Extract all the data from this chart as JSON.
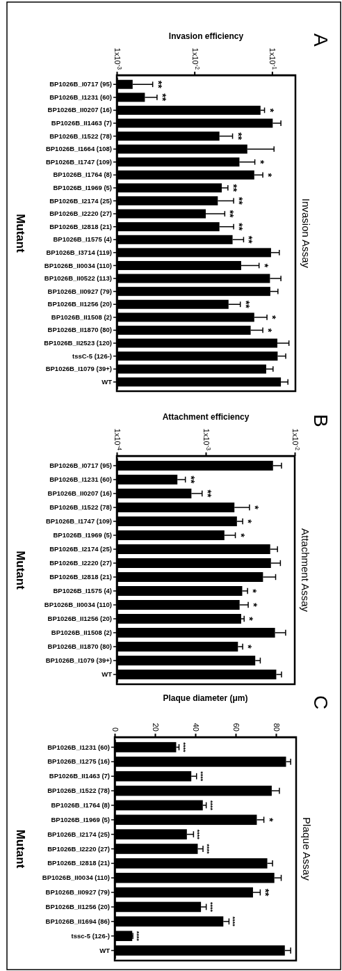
{
  "chart_data": [
    {
      "type": "bar",
      "orientation": "horizontal",
      "title": "Invasion Assay",
      "ylabel": "Mutant",
      "xlabel": "Invasion efficiency",
      "log": "x",
      "color": "#000000",
      "categories": [
        "BP1026B_I0717 (95)",
        "BP1026B_I1231 (60)",
        "BP1026B_II0207 (16)",
        "BP1026B_II1463 (7)",
        "BP1026B_I1522 (78)",
        "BP1026B_I1664 (108)",
        "BP1026B_I1747 (109)",
        "BP1026B_I1764 (8)",
        "BP1026B_I1969 (5)",
        "BP1026B_I2174 (25)",
        "BP1026B_I2220 (27)",
        "BP1026B_I2818 (21)",
        "BP1026B_I1575 (4)",
        "BP1026B_I3714 (119)",
        "BP1026B_II0034 (110)",
        "BP1026B_II0522 (113)",
        "BP1026B_II0927 (79)",
        "BP1026B_II1256 (20)",
        "BP1026B_II1508 (2)",
        "BP1026B_II1870 (80)",
        "BP1026B_II2523 (120)",
        "tssC-5 (126-)",
        "BP1026B_I1079 (39+)",
        "WT"
      ],
      "values": [
        0.0016,
        0.0023,
        0.071,
        0.102,
        0.021,
        0.048,
        0.038,
        0.059,
        0.0225,
        0.02,
        0.014,
        0.021,
        0.031,
        0.097,
        0.04,
        0.094,
        0.095,
        0.0275,
        0.059,
        0.053,
        0.117,
        0.118,
        0.084,
        0.13
      ],
      "errors": [
        [
          0.0016,
          0.0029
        ],
        [
          0.0023,
          0.0033
        ],
        [
          0.071,
          0.08
        ],
        [
          0.102,
          0.13
        ],
        [
          0.021,
          0.031
        ],
        [
          0.048,
          0.106
        ],
        [
          0.038,
          0.06
        ],
        [
          0.059,
          0.076
        ],
        [
          0.0225,
          0.027
        ],
        [
          0.02,
          0.032
        ],
        [
          0.014,
          0.0246
        ],
        [
          0.021,
          0.032
        ],
        [
          0.031,
          0.043
        ],
        [
          0.097,
          0.124
        ],
        [
          0.04,
          0.068
        ],
        [
          0.094,
          0.13
        ],
        [
          0.095,
          0.119
        ],
        [
          0.0275,
          0.039
        ],
        [
          0.059,
          0.086
        ],
        [
          0.053,
          0.076
        ],
        [
          0.117,
          0.165
        ],
        [
          0.118,
          0.15
        ],
        [
          0.084,
          0.103
        ],
        [
          0.13,
          0.16
        ]
      ],
      "xlim": [
        0.001,
        0.2
      ],
      "xticks": [
        {
          "value": 0.001,
          "label": "1x10$^{-3}$"
        },
        {
          "value": 0.01,
          "label": "1x10$^{-2}$"
        },
        {
          "value": 0.1,
          "label": "1x10$^{-1}$"
        }
      ],
      "annotations": [
        "A",
        {
          "text": "**",
          "y": "BP1026B_I0717 (95)",
          "x": 0.0029
        },
        {
          "text": "**",
          "y": "BP1026B_I1231 (60)",
          "x": 0.0033
        },
        {
          "text": "*",
          "y": "BP1026B_II0207 (16)",
          "x": 0.08
        },
        {
          "text": "**",
          "y": "BP1026B_I1522 (78)",
          "x": 0.031
        },
        {
          "text": "*",
          "y": "BP1026B_I1747 (109)",
          "x": 0.06
        },
        {
          "text": "*",
          "y": "BP1026B_I1764 (8)",
          "x": 0.076
        },
        {
          "text": "**",
          "y": "BP1026B_I1969 (5)",
          "x": 0.027
        },
        {
          "text": "**",
          "y": "BP1026B_I2174 (25)",
          "x": 0.032
        },
        {
          "text": "**",
          "y": "BP1026B_I2220 (27)",
          "x": 0.0246
        },
        {
          "text": "**",
          "y": "BP1026B_I2818 (21)",
          "x": 0.032
        },
        {
          "text": "**",
          "y": "BP1026B_I1575 (4)",
          "x": 0.043
        },
        {
          "text": "*",
          "y": "BP1026B_II0034 (110)",
          "x": 0.068
        },
        {
          "text": "**",
          "y": "BP1026B_II1256 (20)",
          "x": 0.039
        },
        {
          "text": "*",
          "y": "BP1026B_II1508 (2)",
          "x": 0.086
        },
        {
          "text": "*",
          "y": "BP1026B_II1870 (80)",
          "x": 0.076
        }
      ]
    },
    {
      "type": "bar",
      "orientation": "horizontal",
      "title": "Attachment Assay",
      "ylabel": "Mutant",
      "xlabel": "Attachment efficiency",
      "log": "x",
      "color": "#000000",
      "categories": [
        "BP1026B_I0717 (95)",
        "BP1026B_I1231 (60)",
        "BP1026B_II0207 (16)",
        "BP1026B_I1522 (78)",
        "BP1026B_I1747 (109)",
        "BP1026B_I1969 (5)",
        "BP1026B_I2174 (25)",
        "BP1026B_I2220 (27)",
        "BP1026B_I2818 (21)",
        "BP1026B_I1575 (4)",
        "BP1026B_II0034 (110)",
        "BP1026B_II1256 (20)",
        "BP1026B_II1508 (2)",
        "BP1026B_II1870 (80)",
        "BP1026B_I1079 (39+)",
        "WT"
      ],
      "values": [
        0.0057,
        0.00048,
        0.00069,
        0.0021,
        0.00224,
        0.00162,
        0.0053,
        0.0054,
        0.0044,
        0.00257,
        0.0024,
        0.0025,
        0.006,
        0.0023,
        0.0036,
        0.0062
      ],
      "errors": [
        [
          0.0057,
          0.0071
        ],
        [
          0.00048,
          0.00059
        ],
        [
          0.00069,
          0.00091
        ],
        [
          0.0021,
          0.0031
        ],
        [
          0.00224,
          0.0026
        ],
        [
          0.00162,
          0.00215
        ],
        [
          0.0053,
          0.0064
        ],
        [
          0.0054,
          0.0069
        ],
        [
          0.0044,
          0.0061
        ],
        [
          0.00257,
          0.00295
        ],
        [
          0.0024,
          0.003
        ],
        [
          0.0025,
          0.0027
        ],
        [
          0.006,
          0.0079
        ],
        [
          0.0023,
          0.0026
        ],
        [
          0.0036,
          0.0041
        ],
        [
          0.0062,
          0.0071
        ]
      ],
      "xlim": [
        0.0001,
        0.01
      ],
      "xticks": [
        {
          "value": 0.0001,
          "label": "1x10$^{-4}$"
        },
        {
          "value": 0.001,
          "label": "1x10$^{-3}$"
        },
        {
          "value": 0.01,
          "label": "1x10$^{-2}$"
        }
      ],
      "annotations": [
        "B",
        {
          "text": "**",
          "y": "BP1026B_I1231 (60)",
          "x": 0.00059
        },
        {
          "text": "**",
          "y": "BP1026B_II0207 (16)",
          "x": 0.00091
        },
        {
          "text": "*",
          "y": "BP1026B_I1522 (78)",
          "x": 0.0031
        },
        {
          "text": "*",
          "y": "BP1026B_I1747 (109)",
          "x": 0.0026
        },
        {
          "text": "*",
          "y": "BP1026B_I1969 (5)",
          "x": 0.00215
        },
        {
          "text": "*",
          "y": "BP1026B_I1575 (4)",
          "x": 0.00295
        },
        {
          "text": "*",
          "y": "BP1026B_II0034 (110)",
          "x": 0.003
        },
        {
          "text": "*",
          "y": "BP1026B_II1256 (20)",
          "x": 0.0027
        },
        {
          "text": "*",
          "y": "BP1026B_II1870 (80)",
          "x": 0.0026
        }
      ]
    },
    {
      "type": "bar",
      "orientation": "horizontal",
      "title": "Plaque Assay",
      "ylabel": "Mutant",
      "xlabel": "Plaque diameter (μm)",
      "color": "#000000",
      "categories": [
        "BP1026B_I1231 (60)",
        "BP1026B_I1275 (16)",
        "BP1026B_II1463 (7)",
        "BP1026B_I1522 (78)",
        "BP1026B_I1764 (8)",
        "BP1026B_I1969 (5)",
        "BP1026B_I2174 (25)",
        "BP1026B_I2220 (27)",
        "BP1026B_I2818 (21)",
        "BP1026B_II0034 (110)",
        "BP1026B_II0927 (79)",
        "BP1026B_II1256 (20)",
        "BP1026B_II1694 (86)",
        "tssc-5 (126-)",
        "WT"
      ],
      "values": [
        30.5,
        85,
        38,
        77.9,
        43.7,
        70.5,
        35.8,
        41.2,
        75.7,
        79.2,
        68.6,
        42.8,
        53.9,
        8.7,
        84.4
      ],
      "errors": [
        [
          30.5,
          31.9
        ],
        [
          85,
          87.3
        ],
        [
          38,
          40.6
        ],
        [
          77.9,
          81.7
        ],
        [
          43.7,
          45.4
        ],
        [
          70.5,
          74
        ],
        [
          35.8,
          39.1
        ],
        [
          41.2,
          43.8
        ],
        [
          75.7,
          78.3
        ],
        [
          79.2,
          82.6
        ],
        [
          68.6,
          72.2
        ],
        [
          42.8,
          45.4
        ],
        [
          53.9,
          56.7
        ],
        [
          8.7,
          9
        ],
        [
          84.4,
          87.3
        ]
      ],
      "xlim": [
        0,
        90
      ],
      "xticks": [
        0,
        20,
        40,
        60,
        80
      ],
      "annotations": [
        "C",
        {
          "text": "****",
          "y": "BP1026B_I1231 (60)",
          "x": 31.9
        },
        {
          "text": "****",
          "y": "BP1026B_II1463 (7)",
          "x": 40.6
        },
        {
          "text": "****",
          "y": "BP1026B_I1764 (8)",
          "x": 45.4
        },
        {
          "text": "*",
          "y": "BP1026B_I1969 (5)",
          "x": 74
        },
        {
          "text": "****",
          "y": "BP1026B_I2174 (25)",
          "x": 39.1
        },
        {
          "text": "****",
          "y": "BP1026B_I2220 (27)",
          "x": 43.8
        },
        {
          "text": "**",
          "y": "BP1026B_II0927 (79)",
          "x": 72.2
        },
        {
          "text": "****",
          "y": "BP1026B_II1256 (20)",
          "x": 45.4
        },
        {
          "text": "****",
          "y": "BP1026B_II1694 (86)",
          "x": 56.7
        },
        {
          "text": "****",
          "y": "tssc-5 (126-)",
          "x": 9
        }
      ]
    }
  ]
}
